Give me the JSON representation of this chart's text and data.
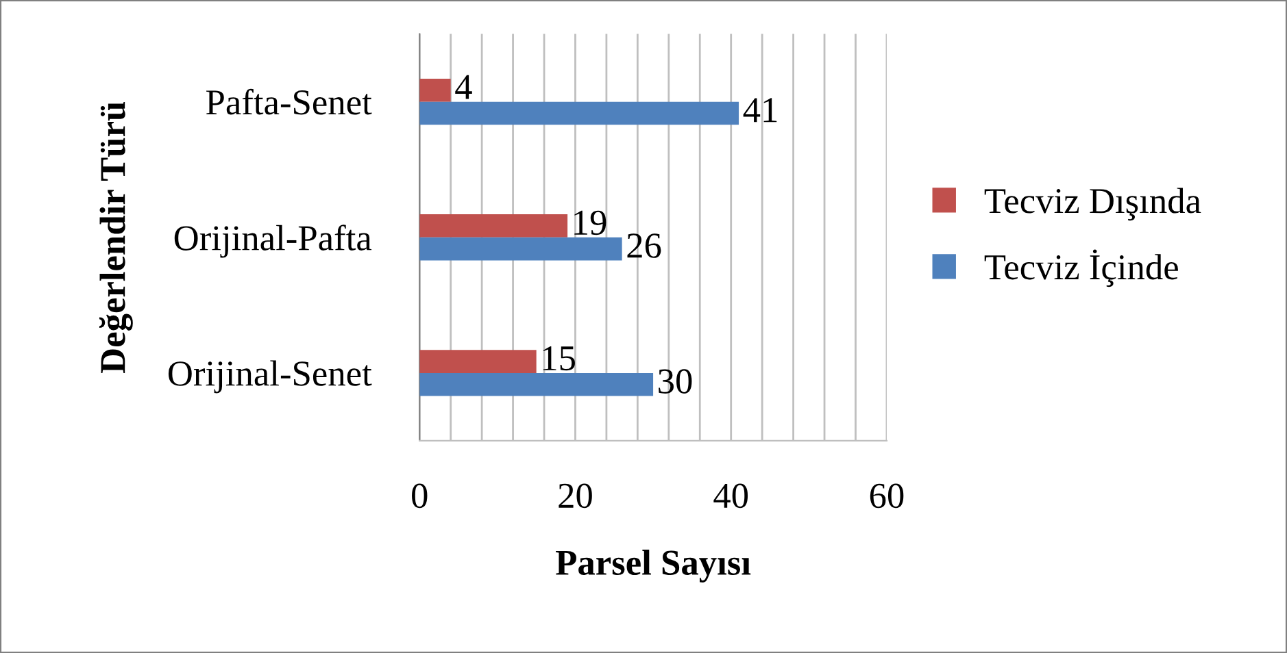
{
  "chart_data": {
    "type": "bar",
    "orientation": "horizontal",
    "xlabel": "Parsel Sayısı",
    "ylabel": "Değerlendir Türü",
    "categories": [
      "Pafta-Senet",
      "Orijinal-Pafta",
      "Orijinal-Senet"
    ],
    "series": [
      {
        "name": "Tecviz Dışında",
        "color": "#c0504d",
        "values": [
          4,
          19,
          15
        ]
      },
      {
        "name": "Tecviz İçinde",
        "color": "#4f81bd",
        "values": [
          41,
          26,
          30
        ]
      }
    ],
    "xlim": [
      0,
      60
    ],
    "xticks": [
      0,
      {
        "value": 4,
        "label": null
      },
      {
        "value": 8,
        "label": null
      },
      {
        "value": 12,
        "label": null
      },
      {
        "value": 16,
        "label": null
      },
      20,
      {
        "value": 24,
        "label": null
      },
      {
        "value": 28,
        "label": null
      },
      {
        "value": 32,
        "label": null
      },
      {
        "value": 36,
        "label": null
      },
      40,
      {
        "value": 44,
        "label": null
      },
      {
        "value": 48,
        "label": null
      },
      {
        "value": 52,
        "label": null
      },
      {
        "value": 56,
        "label": null
      },
      60
    ],
    "grid": "x",
    "legend": "right",
    "data_labels": true
  }
}
